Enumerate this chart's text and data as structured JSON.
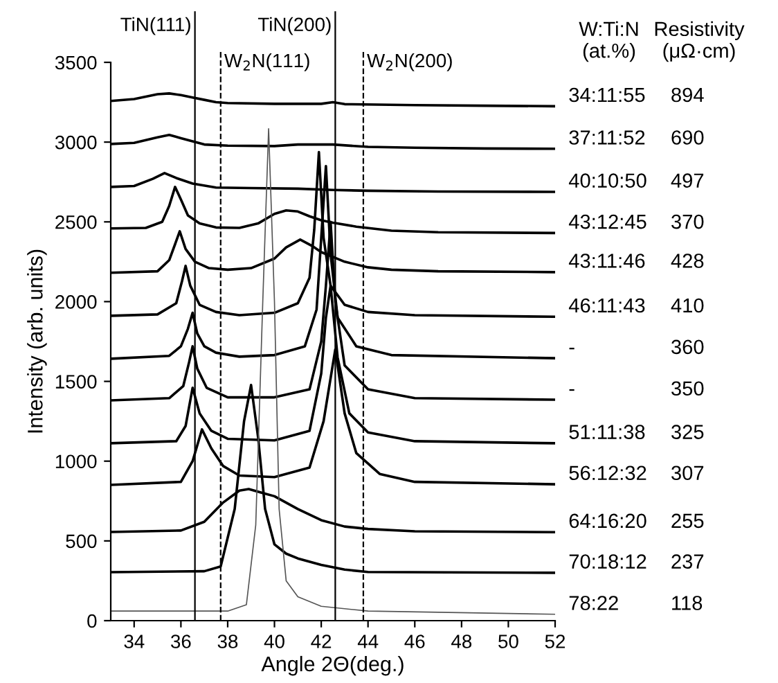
{
  "chart_data": {
    "type": "line",
    "xlabel": "Angle 2Θ(deg.)",
    "ylabel": "Intensity (arb. units)",
    "xlim": [
      33,
      52
    ],
    "ylim": [
      0,
      3500
    ],
    "xticks": [
      34,
      36,
      38,
      40,
      42,
      44,
      46,
      48,
      50,
      52
    ],
    "yticks": [
      0,
      500,
      1000,
      1500,
      2000,
      2500,
      3000,
      3500
    ],
    "grid": false,
    "marker": "none",
    "line_style": "solid",
    "legend_title": "W:Ti:N\n(at.%)",
    "annotations": [
      "Resistivity\n(μΩ·cm)",
      "894",
      "690",
      "497",
      "370",
      "428",
      "410",
      "360",
      "350",
      "325",
      "307",
      "255",
      "237",
      "118"
    ],
    "ref_lines": [
      {
        "axis": "x",
        "value": 36.6,
        "label": "TiN(111)",
        "color": "#000000",
        "line_style": "solid"
      },
      {
        "axis": "x",
        "value": 37.7,
        "label": "W$_{2}$N(111)",
        "color": "#000000",
        "line_style": "dashed"
      },
      {
        "axis": "x",
        "value": 42.6,
        "label": "TiN(200)",
        "color": "#000000",
        "line_style": "solid"
      },
      {
        "axis": "x",
        "value": 43.8,
        "label": "W$_{2}$N(200)",
        "color": "#000000",
        "line_style": "dashed"
      }
    ],
    "series": [
      {
        "name": "34:11:55",
        "color": "#000000",
        "x": [
          33,
          34,
          35,
          35.5,
          36,
          36.5,
          37,
          37.5,
          38,
          40,
          42,
          42.5,
          43,
          46,
          49,
          52
        ],
        "values": [
          3258,
          3270,
          3300,
          3305,
          3295,
          3280,
          3265,
          3250,
          3245,
          3240,
          3240,
          3250,
          3238,
          3232,
          3228,
          3225
        ]
      },
      {
        "name": "37:11:52",
        "color": "#000000",
        "x": [
          33,
          34,
          35,
          35.5,
          36,
          37,
          38,
          40,
          41,
          42.5,
          44,
          46,
          49,
          52
        ],
        "values": [
          2988,
          2995,
          3030,
          3045,
          3025,
          2985,
          2978,
          2975,
          2985,
          2985,
          2970,
          2965,
          2960,
          2958
        ]
      },
      {
        "name": "40:10:50",
        "color": "#000000",
        "x": [
          33,
          34,
          34.8,
          35.3,
          35.8,
          36.5,
          37.5,
          39,
          41,
          42.5,
          44,
          47,
          52
        ],
        "values": [
          2719,
          2725,
          2770,
          2806,
          2775,
          2740,
          2715,
          2712,
          2708,
          2700,
          2695,
          2690,
          2688
        ]
      },
      {
        "name": "43:12:45",
        "color": "#000000",
        "x": [
          33,
          34.5,
          35.2,
          35.5,
          35.75,
          36,
          36.3,
          36.8,
          37.5,
          38.5,
          39.3,
          40,
          40.5,
          41,
          41.5,
          42,
          42.5,
          43.5,
          45,
          47,
          52
        ],
        "values": [
          2459,
          2462,
          2500,
          2600,
          2719,
          2640,
          2540,
          2490,
          2465,
          2462,
          2490,
          2550,
          2572,
          2565,
          2535,
          2510,
          2495,
          2470,
          2445,
          2435,
          2430
        ]
      },
      {
        "name": "43:11:46",
        "color": "#000000",
        "x": [
          33,
          35,
          35.5,
          35.8,
          35.95,
          36.2,
          36.6,
          37.2,
          38,
          39,
          40,
          40.5,
          41.1,
          41.6,
          42,
          42.5,
          43,
          44,
          45,
          47,
          52
        ],
        "values": [
          2181,
          2190,
          2260,
          2380,
          2441,
          2330,
          2250,
          2210,
          2200,
          2210,
          2270,
          2340,
          2389,
          2350,
          2310,
          2280,
          2250,
          2215,
          2200,
          2190,
          2185
        ]
      },
      {
        "name": "46:11:43",
        "color": "#000000",
        "x": [
          33,
          35,
          35.8,
          36.05,
          36.2,
          36.4,
          36.8,
          37.5,
          38.5,
          40,
          41,
          41.5,
          41.7,
          41.9,
          42.1,
          42.4,
          43,
          44,
          46,
          52
        ],
        "values": [
          1911,
          1920,
          1990,
          2130,
          2224,
          2100,
          1980,
          1935,
          1915,
          1930,
          1990,
          2150,
          2450,
          2937,
          2400,
          2100,
          1980,
          1935,
          1915,
          1905
        ]
      },
      {
        "name": "-",
        "color": "#000000",
        "x": [
          33,
          35.5,
          36,
          36.3,
          36.5,
          36.7,
          37,
          37.5,
          38.5,
          40,
          41.3,
          41.8,
          42,
          42.2,
          42.4,
          42.7,
          43.5,
          45,
          52
        ],
        "values": [
          1642,
          1660,
          1720,
          1830,
          1930,
          1800,
          1720,
          1680,
          1655,
          1665,
          1720,
          1950,
          2400,
          2850,
          2300,
          1900,
          1720,
          1665,
          1645
        ]
      },
      {
        "name": "-",
        "color": "#000000",
        "x": [
          33,
          35.5,
          36.1,
          36.35,
          36.5,
          36.7,
          37.1,
          38,
          40,
          41.5,
          42,
          42.2,
          42.4,
          42.6,
          43,
          44,
          46,
          52
        ],
        "values": [
          1381,
          1395,
          1470,
          1620,
          1720,
          1580,
          1460,
          1400,
          1400,
          1450,
          1750,
          2100,
          2500,
          2000,
          1600,
          1450,
          1395,
          1385
        ]
      },
      {
        "name": "51:11:38",
        "color": "#000000",
        "x": [
          33,
          35.8,
          36.2,
          36.5,
          36.8,
          37.3,
          38,
          40,
          41.5,
          42,
          42.2,
          42.4,
          42.7,
          43.2,
          44,
          46,
          52
        ],
        "values": [
          1112,
          1125,
          1220,
          1460,
          1300,
          1190,
          1140,
          1130,
          1190,
          1550,
          1900,
          2100,
          1650,
          1300,
          1180,
          1125,
          1112
        ]
      },
      {
        "name": "56:12:32",
        "color": "#000000",
        "x": [
          33,
          36,
          36.5,
          36.9,
          37.3,
          37.8,
          38.5,
          40,
          41.5,
          42.1,
          42.6,
          43,
          43.5,
          44.5,
          46,
          52
        ],
        "values": [
          851,
          870,
          1000,
          1199,
          1080,
          970,
          910,
          900,
          960,
          1250,
          1700,
          1300,
          1050,
          920,
          870,
          855
        ]
      },
      {
        "name": "64:16:20",
        "color": "#000000",
        "x": [
          33,
          36,
          37,
          37.8,
          38.5,
          38.9,
          39.5,
          40,
          41,
          42,
          43,
          44,
          46,
          52
        ],
        "values": [
          556,
          565,
          620,
          740,
          815,
          825,
          800,
          780,
          700,
          630,
          590,
          575,
          560,
          555
        ]
      },
      {
        "name": "70:18:12",
        "color": "#000000",
        "x": [
          33,
          37,
          37.7,
          38.3,
          38.7,
          39.0,
          39.3,
          39.6,
          40.0,
          40.5,
          41,
          42,
          43,
          44,
          52
        ],
        "values": [
          304,
          310,
          340,
          700,
          1250,
          1477,
          1150,
          700,
          478,
          420,
          390,
          350,
          320,
          305,
          300
        ]
      },
      {
        "name": "78:22",
        "color": "#555555",
        "x": [
          33,
          38,
          38.8,
          39.2,
          39.5,
          39.75,
          40.0,
          40.2,
          40.5,
          41,
          42,
          44,
          52
        ],
        "values": [
          60,
          60,
          100,
          600,
          2000,
          3084,
          2000,
          700,
          250,
          150,
          90,
          60,
          40
        ]
      }
    ]
  }
}
